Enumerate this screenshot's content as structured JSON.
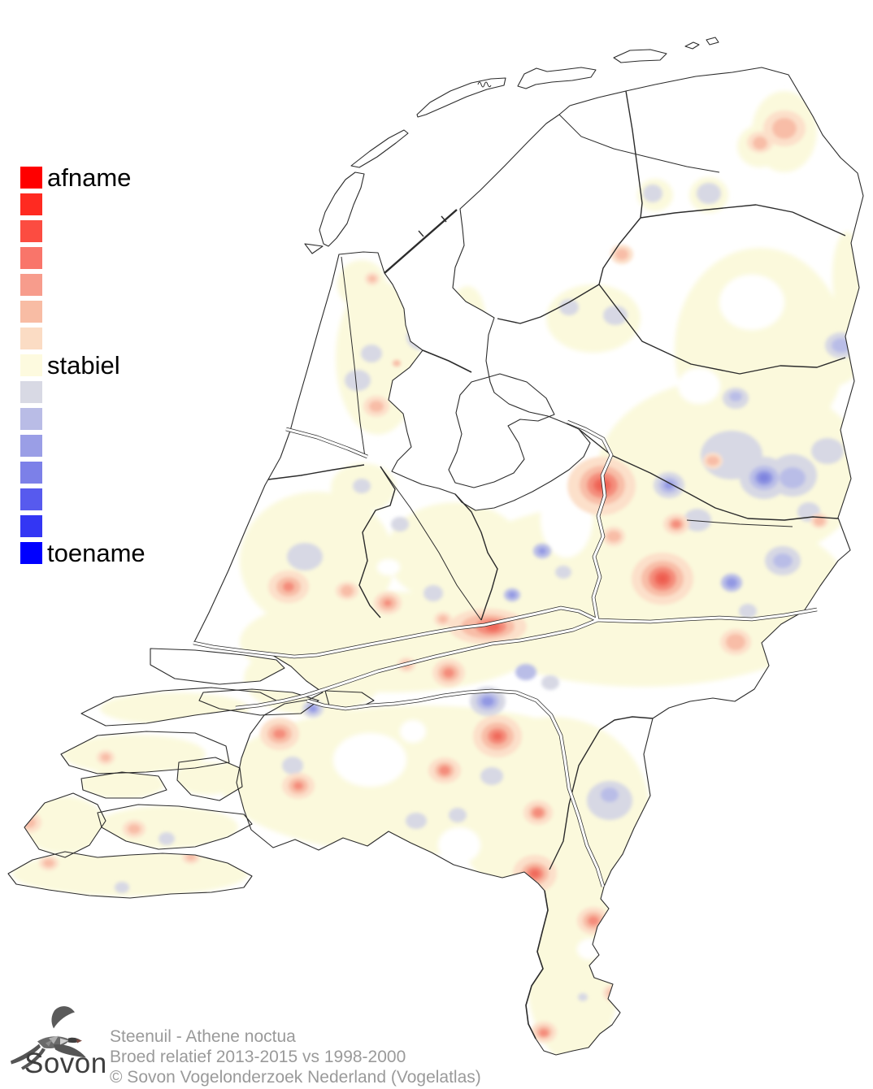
{
  "legend": {
    "top_label": "afname",
    "middle_label": "stabiel",
    "bottom_label": "toename",
    "colors": [
      "#FF0000",
      "#FF2A21",
      "#FC4C41",
      "#F9756A",
      "#F79C8C",
      "#F8BCA4",
      "#FBDCC4",
      "#FDFADF",
      "#D8D9E4",
      "#B9BCE6",
      "#9A9EE6",
      "#7C80E8",
      "#575AEE",
      "#3336F4",
      "#0000FF"
    ]
  },
  "caption": {
    "species": "Steenuil - Athene noctua",
    "metric": "Broed relatief 2013-2015 vs 1998-2000",
    "copyright": "© Sovon Vogelonderzoek Nederland (Vogelatlas)"
  },
  "logo": {
    "text": "Sovon"
  },
  "map": {
    "palette": {
      "cream": "#FBF9DC",
      "hole": "#FFFFFF",
      "gray": "#D7D8E4",
      "lavender": "#B9BDE7",
      "blue": "#9298E3",
      "deep_blue": "#7F84DF",
      "pink": "#FCE0CA",
      "salmon": "#F8BDA7",
      "mid_red": "#F48D7C",
      "red": "#F06A5C",
      "deep_red": "#EE5A4E",
      "outline": "#2B2B2B"
    }
  }
}
